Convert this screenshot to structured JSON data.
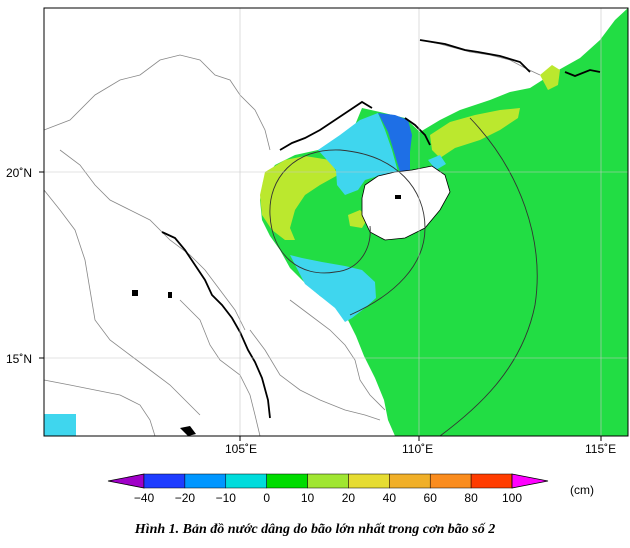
{
  "map": {
    "lon_ticks": [
      "105˚E",
      "110˚E",
      "115˚E"
    ],
    "lat_ticks": [
      "20˚N",
      "15˚N"
    ],
    "grid": true
  },
  "colorbar": {
    "unit": "(cm)",
    "tick_labels": [
      "−40",
      "−20",
      "−10",
      "0",
      "10",
      "20",
      "40",
      "60",
      "80",
      "100"
    ],
    "colors": [
      "#a000c8",
      "#1e3cff",
      "#0096ff",
      "#00dcdc",
      "#00dc00",
      "#a0e632",
      "#e6dc32",
      "#f0af28",
      "#fa8c1e",
      "#ff3c00",
      "#ff00ff"
    ]
  },
  "surge_colors": {
    "blue": "#1e6fe6",
    "cyan": "#3fd6ee",
    "green": "#22dd44",
    "yellow_green": "#bbe82e"
  },
  "caption": "Hình 1. Bản đồ nước dâng do bão lớn nhất trong cơn bão số 2"
}
